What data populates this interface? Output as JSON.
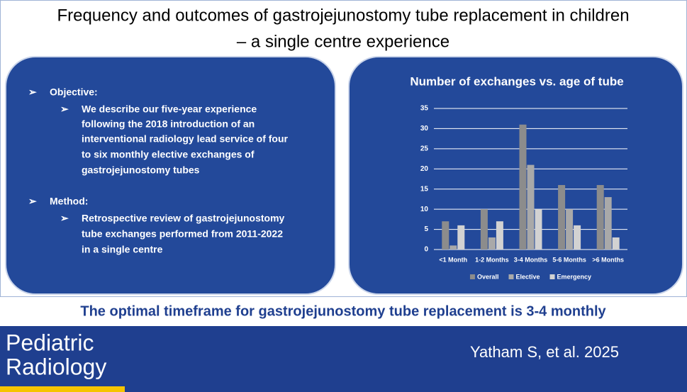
{
  "header": {
    "title_lines": [
      "Frequency and outcomes of gastrojejunostomy tube replacement in children",
      "– a single centre experience"
    ]
  },
  "summary": {
    "objective": {
      "heading": "Objective:",
      "text_lines": [
        "We describe our five-year experience",
        "following the 2018 introduction of an",
        "interventional radiology lead service of four",
        "to six monthly elective exchanges of",
        "gastrojejunostomy tubes"
      ]
    },
    "method": {
      "heading": "Method:",
      "text_lines": [
        "Retrospective review of gastrojejunostomy",
        "tube exchanges performed from 2011-2022",
        "in a single centre"
      ]
    }
  },
  "chart_data": {
    "type": "bar",
    "title": "Number of exchanges vs. age of tube",
    "categories": [
      "<1 Month",
      "1-2 Months",
      "3-4 Months",
      "5-6 Months",
      ">6 Months"
    ],
    "series": [
      {
        "name": "Overall",
        "color": "#8c8c8c",
        "values": [
          7,
          10,
          31,
          16,
          16
        ]
      },
      {
        "name": "Elective",
        "color": "#a9a9a9",
        "values": [
          1,
          3,
          21,
          10,
          13
        ]
      },
      {
        "name": "Emergency",
        "color": "#d2d2d2",
        "values": [
          6,
          7,
          10,
          6,
          3
        ]
      }
    ],
    "ylim": [
      0,
      35
    ],
    "yticks": [
      0,
      5,
      10,
      15,
      20,
      25,
      30,
      35
    ],
    "grid": true,
    "legend": "bottom"
  },
  "conclusion": "The optimal timeframe for gastrojejunostomy tube replacement is 3-4 monthly",
  "footer": {
    "journal_lines": [
      "Pediatric",
      "Radiology"
    ],
    "citation": "Yatham S, et al. 2025"
  }
}
